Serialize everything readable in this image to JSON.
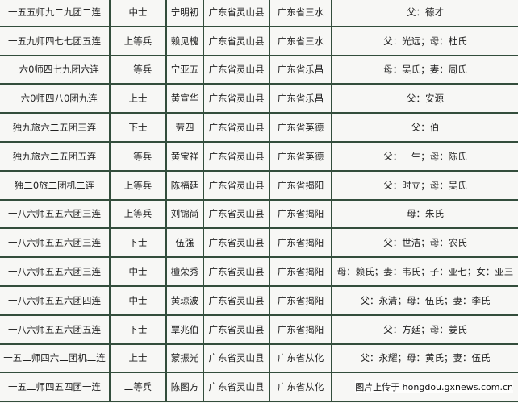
{
  "table": {
    "rows": [
      [
        "一五五师九二九团二连",
        "中士",
        "宁明初",
        "广东省灵山县",
        "广东省三水",
        "父：德才"
      ],
      [
        "一五九师四七七团五连",
        "上等兵",
        "赖见槐",
        "广东省灵山县",
        "广东省三水",
        "父：光远；母：杜氏"
      ],
      [
        "一六0师四七九团六连",
        "一等兵",
        "宁亚五",
        "广东省灵山县",
        "广东省乐昌",
        "母：吴氏；妻：周氏"
      ],
      [
        "一六0师四八0团九连",
        "上士",
        "黄宣华",
        "广东省灵山县",
        "广东省乐昌",
        "父：安源"
      ],
      [
        "独九旅六二五团三连",
        "下士",
        "劳四",
        "广东省灵山县",
        "广东省英德",
        "父：伯"
      ],
      [
        "独九旅六二五团五连",
        "一等兵",
        "黄宝祥",
        "广东省灵山县",
        "广东省英德",
        "父：一生；母：陈氏"
      ],
      [
        "独二0旅二团机二连",
        "上等兵",
        "陈福廷",
        "广东省灵山县",
        "广东省揭阳",
        "父：时立；母：吴氏"
      ],
      [
        "一八六师五五六团三连",
        "上等兵",
        "刘锦尚",
        "广东省灵山县",
        "广东省揭阳",
        "母：朱氏"
      ],
      [
        "一八六师五五六团三连",
        "下士",
        "伍强",
        "广东省灵山县",
        "广东省揭阳",
        "父：世洁；母：农氏"
      ],
      [
        "一八六师五五六团三连",
        "中士",
        "檀荣秀",
        "广东省灵山县",
        "广东省揭阳",
        "母：赖氏；妻：韦氏；子：亚七；女：亚三"
      ],
      [
        "一八六师五五六团四连",
        "中士",
        "黄琼波",
        "广东省灵山县",
        "广东省揭阳",
        "父：永清；母：伍氏；妻：李氏"
      ],
      [
        "一八六师五五六团五连",
        "下士",
        "覃兆伯",
        "广东省灵山县",
        "广东省揭阳",
        "父：方廷；母：姜氏"
      ],
      [
        "一五二师四六二团机二连",
        "上士",
        "蒙振光",
        "广东省灵山县",
        "广东省从化",
        "父：永耀；母：黄氏；妻：伍氏"
      ],
      [
        "一五二师四五四团一连",
        "二等兵",
        "陈图方",
        "广东省灵山县",
        "广东省从化"
      ]
    ]
  },
  "watermark": "图片上传于 hongdou.gxnews.com.cn"
}
